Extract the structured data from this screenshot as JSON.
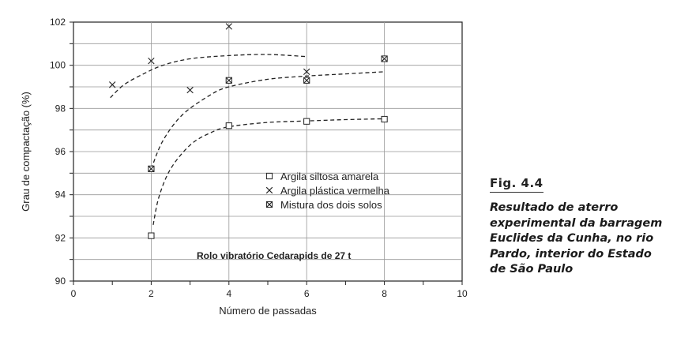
{
  "chart_data": {
    "type": "scatter",
    "xlabel": "Número de passadas",
    "ylabel": "Grau de compactação (%)",
    "xlim": [
      0,
      10
    ],
    "ylim": [
      90,
      102
    ],
    "x_ticks": [
      "0",
      "2",
      "4",
      "6",
      "8",
      "10"
    ],
    "y_ticks": [
      "90",
      "92",
      "94",
      "96",
      "98",
      "100",
      "102"
    ],
    "grid": true,
    "legend_position": "center-right",
    "annotation": "Rolo vibratório Cedarapids de 27 t",
    "series": [
      {
        "name": "Argila siltosa amarela",
        "marker": "square",
        "points": [
          [
            2,
            92.1
          ],
          [
            4,
            97.2
          ],
          [
            6,
            97.4
          ],
          [
            8,
            97.5
          ]
        ],
        "trend": [
          [
            2.05,
            92.6
          ],
          [
            2.2,
            93.9
          ],
          [
            2.5,
            95.2
          ],
          [
            3,
            96.3
          ],
          [
            3.5,
            96.85
          ],
          [
            4,
            97.15
          ],
          [
            5,
            97.35
          ],
          [
            6,
            97.42
          ],
          [
            7,
            97.48
          ],
          [
            8,
            97.52
          ]
        ]
      },
      {
        "name": "Argila plástica vermelha",
        "marker": "x",
        "points": [
          [
            1,
            99.1
          ],
          [
            2,
            100.2
          ],
          [
            3,
            98.85
          ],
          [
            4,
            101.8
          ],
          [
            6,
            99.7
          ]
        ],
        "trend": [
          [
            0.95,
            98.5
          ],
          [
            1.3,
            99.1
          ],
          [
            1.8,
            99.6
          ],
          [
            2.3,
            100.0
          ],
          [
            3,
            100.3
          ],
          [
            4,
            100.45
          ],
          [
            5,
            100.5
          ],
          [
            6,
            100.4
          ]
        ]
      },
      {
        "name": "Mistura dos dois solos",
        "marker": "boxed-x",
        "points": [
          [
            2,
            95.2
          ],
          [
            4,
            99.3
          ],
          [
            6,
            99.3
          ],
          [
            8,
            100.3
          ]
        ],
        "trend": [
          [
            2.0,
            95.2
          ],
          [
            2.3,
            96.5
          ],
          [
            2.8,
            97.7
          ],
          [
            3.5,
            98.6
          ],
          [
            4,
            99.0
          ],
          [
            5,
            99.35
          ],
          [
            6,
            99.5
          ],
          [
            7,
            99.6
          ],
          [
            8,
            99.7
          ]
        ]
      }
    ]
  },
  "caption": {
    "fig_label": "Fig. 4.4",
    "text": "Resultado de aterro experimental da barragem Euclides da Cunha, no rio Pardo, interior do Estado de São Paulo"
  }
}
